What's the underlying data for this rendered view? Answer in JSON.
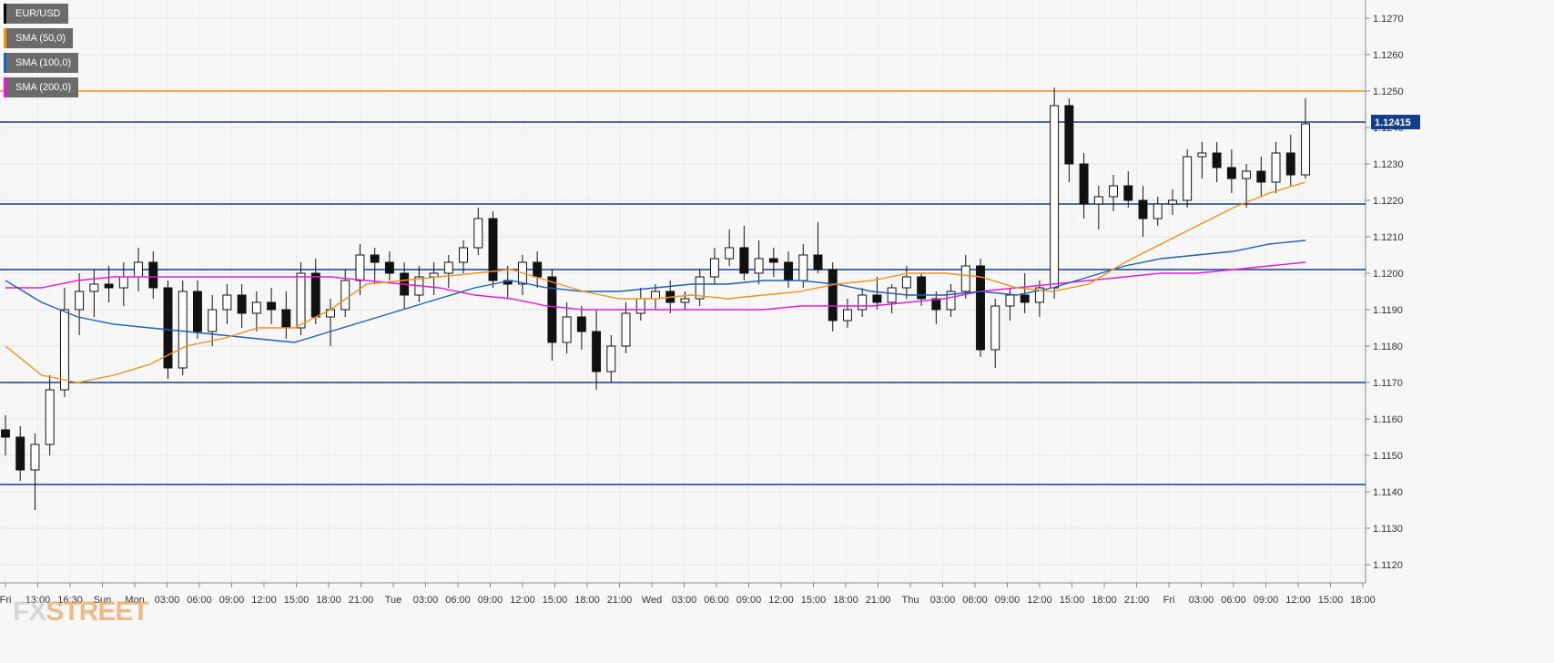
{
  "chart_data": {
    "type": "candlestick",
    "symbol": "EUR/USD",
    "last_price_label": "1.12415",
    "last_price": 1.12415,
    "ylim": [
      1.1115,
      1.1275
    ],
    "y_ticks": [
      1.127,
      1.126,
      1.125,
      1.124,
      1.123,
      1.122,
      1.121,
      1.12,
      1.119,
      1.118,
      1.117,
      1.116,
      1.115,
      1.114,
      1.113,
      1.112
    ],
    "y_tick_labels": [
      "1.1270",
      "1.1260",
      "1.1250",
      "1.1240",
      "1.1230",
      "1.1220",
      "1.1210",
      "1.1200",
      "1.1190",
      "1.1180",
      "1.1170",
      "1.1160",
      "1.1150",
      "1.1140",
      "1.1130",
      "1.1120"
    ],
    "x_tick_labels": [
      "Fri",
      "13:00",
      "16:30",
      "Sun",
      "Mon",
      "03:00",
      "06:00",
      "09:00",
      "12:00",
      "15:00",
      "18:00",
      "21:00",
      "Tue",
      "03:00",
      "06:00",
      "09:00",
      "12:00",
      "15:00",
      "18:00",
      "21:00",
      "Wed",
      "03:00",
      "06:00",
      "09:00",
      "12:00",
      "15:00",
      "18:00",
      "21:00",
      "Thu",
      "03:00",
      "06:00",
      "09:00",
      "12:00",
      "15:00",
      "18:00",
      "21:00",
      "Fri",
      "03:00",
      "06:00",
      "09:00",
      "12:00",
      "15:00",
      "18:00"
    ],
    "legend": [
      {
        "label": "EUR/USD",
        "color": "#000000"
      },
      {
        "label": "SMA (50,0)",
        "color": "#f0921e"
      },
      {
        "label": "SMA (100,0)",
        "color": "#1f5fb4"
      },
      {
        "label": "SMA (200,0)",
        "color": "#e619d6"
      }
    ],
    "horizontal_levels": [
      {
        "value": 1.125,
        "color": "#f0921e"
      },
      {
        "value": 1.12415,
        "color": "#123f8c"
      },
      {
        "value": 1.1219,
        "color": "#123f8c"
      },
      {
        "value": 1.1201,
        "color": "#123f8c"
      },
      {
        "value": 1.117,
        "color": "#123f8c"
      },
      {
        "value": 1.1142,
        "color": "#123f8c"
      }
    ],
    "sma50": [
      1.118,
      1.1172,
      1.117,
      1.1172,
      1.1175,
      1.118,
      1.1182,
      1.1185,
      1.1185,
      1.119,
      1.1197,
      1.1198,
      1.1199,
      1.12,
      1.1201,
      1.1198,
      1.1195,
      1.1193,
      1.1193,
      1.1194,
      1.1193,
      1.1194,
      1.1195,
      1.1197,
      1.1198,
      1.12,
      1.12,
      1.1199,
      1.1196,
      1.1195,
      1.1197,
      1.1203,
      1.1208,
      1.1213,
      1.1218,
      1.1222,
      1.1225
    ],
    "sma100": [
      1.1198,
      1.1192,
      1.1188,
      1.1186,
      1.1185,
      1.1184,
      1.1183,
      1.1182,
      1.1181,
      1.1184,
      1.1187,
      1.119,
      1.1193,
      1.1196,
      1.1198,
      1.1196,
      1.1195,
      1.1195,
      1.1196,
      1.1197,
      1.1197,
      1.1198,
      1.1198,
      1.1197,
      1.1195,
      1.1194,
      1.1194,
      1.1195,
      1.1194,
      1.1196,
      1.1199,
      1.1202,
      1.1204,
      1.1205,
      1.1206,
      1.1208,
      1.1209
    ],
    "sma200": [
      1.1196,
      1.1196,
      1.1198,
      1.1199,
      1.1199,
      1.1199,
      1.1199,
      1.1199,
      1.1199,
      1.1199,
      1.1198,
      1.1197,
      1.1196,
      1.1194,
      1.1193,
      1.1191,
      1.119,
      1.119,
      1.119,
      1.119,
      1.119,
      1.119,
      1.1191,
      1.1191,
      1.1191,
      1.1192,
      1.1193,
      1.1195,
      1.1196,
      1.1197,
      1.1198,
      1.1199,
      1.12,
      1.12,
      1.1201,
      1.1202,
      1.1203
    ],
    "candles_ohlc": [
      [
        1.1157,
        1.1161,
        1.115,
        1.1155
      ],
      [
        1.1155,
        1.1158,
        1.1143,
        1.1146
      ],
      [
        1.1146,
        1.1156,
        1.1135,
        1.1153
      ],
      [
        1.1153,
        1.1172,
        1.115,
        1.1168
      ],
      [
        1.1168,
        1.1196,
        1.1166,
        1.119
      ],
      [
        1.119,
        1.12,
        1.1183,
        1.1195
      ],
      [
        1.1195,
        1.1201,
        1.1188,
        1.1197
      ],
      [
        1.1197,
        1.1202,
        1.1192,
        1.1196
      ],
      [
        1.1196,
        1.1203,
        1.1191,
        1.1199
      ],
      [
        1.1199,
        1.1207,
        1.1195,
        1.1203
      ],
      [
        1.1203,
        1.1206,
        1.1193,
        1.1196
      ],
      [
        1.1196,
        1.1198,
        1.1171,
        1.1174
      ],
      [
        1.1174,
        1.1198,
        1.1172,
        1.1195
      ],
      [
        1.1195,
        1.1198,
        1.1182,
        1.1184
      ],
      [
        1.1184,
        1.1194,
        1.118,
        1.119
      ],
      [
        1.119,
        1.1197,
        1.1186,
        1.1194
      ],
      [
        1.1194,
        1.1197,
        1.1185,
        1.1189
      ],
      [
        1.1189,
        1.1195,
        1.1184,
        1.1192
      ],
      [
        1.1192,
        1.1196,
        1.1186,
        1.119
      ],
      [
        1.119,
        1.1195,
        1.1182,
        1.1185
      ],
      [
        1.1185,
        1.1203,
        1.1183,
        1.12
      ],
      [
        1.12,
        1.1204,
        1.1186,
        1.1188
      ],
      [
        1.1188,
        1.1193,
        1.118,
        1.119
      ],
      [
        1.119,
        1.1201,
        1.1188,
        1.1198
      ],
      [
        1.1198,
        1.1208,
        1.1194,
        1.1205
      ],
      [
        1.1205,
        1.1207,
        1.1197,
        1.1203
      ],
      [
        1.1203,
        1.1206,
        1.1198,
        1.12
      ],
      [
        1.12,
        1.1203,
        1.119,
        1.1194
      ],
      [
        1.1194,
        1.1202,
        1.1192,
        1.1199
      ],
      [
        1.1199,
        1.1203,
        1.1194,
        1.12
      ],
      [
        1.12,
        1.1205,
        1.1196,
        1.1203
      ],
      [
        1.1203,
        1.1209,
        1.12,
        1.1207
      ],
      [
        1.1207,
        1.1218,
        1.1205,
        1.1215
      ],
      [
        1.1215,
        1.1217,
        1.1196,
        1.1198
      ],
      [
        1.1198,
        1.1202,
        1.1193,
        1.1197
      ],
      [
        1.1197,
        1.1205,
        1.1194,
        1.1203
      ],
      [
        1.1203,
        1.1206,
        1.1196,
        1.1199
      ],
      [
        1.1199,
        1.1201,
        1.1176,
        1.1181
      ],
      [
        1.1181,
        1.1192,
        1.1178,
        1.1188
      ],
      [
        1.1188,
        1.1191,
        1.1179,
        1.1184
      ],
      [
        1.1184,
        1.119,
        1.1168,
        1.1173
      ],
      [
        1.1173,
        1.1183,
        1.117,
        1.118
      ],
      [
        1.118,
        1.1192,
        1.1178,
        1.1189
      ],
      [
        1.1189,
        1.1196,
        1.1187,
        1.1193
      ],
      [
        1.1193,
        1.1197,
        1.119,
        1.1195
      ],
      [
        1.1195,
        1.1198,
        1.1189,
        1.1192
      ],
      [
        1.1192,
        1.1195,
        1.119,
        1.1193
      ],
      [
        1.1193,
        1.1201,
        1.1191,
        1.1199
      ],
      [
        1.1199,
        1.1207,
        1.1197,
        1.1204
      ],
      [
        1.1204,
        1.1212,
        1.1202,
        1.1207
      ],
      [
        1.1207,
        1.1213,
        1.1198,
        1.12
      ],
      [
        1.12,
        1.1209,
        1.1197,
        1.1204
      ],
      [
        1.1204,
        1.1207,
        1.1199,
        1.1203
      ],
      [
        1.1203,
        1.1206,
        1.1196,
        1.1198
      ],
      [
        1.1198,
        1.1208,
        1.1196,
        1.1205
      ],
      [
        1.1205,
        1.1214,
        1.12,
        1.1201
      ],
      [
        1.1201,
        1.1203,
        1.1184,
        1.1187
      ],
      [
        1.1187,
        1.1193,
        1.1185,
        1.119
      ],
      [
        1.119,
        1.1196,
        1.1188,
        1.1194
      ],
      [
        1.1194,
        1.1199,
        1.119,
        1.1192
      ],
      [
        1.1192,
        1.1197,
        1.1189,
        1.1196
      ],
      [
        1.1196,
        1.1202,
        1.1193,
        1.1199
      ],
      [
        1.1199,
        1.12,
        1.1191,
        1.1193
      ],
      [
        1.1193,
        1.1195,
        1.1186,
        1.119
      ],
      [
        1.119,
        1.1197,
        1.1188,
        1.1195
      ],
      [
        1.1195,
        1.1205,
        1.1193,
        1.1202
      ],
      [
        1.1202,
        1.1204,
        1.1177,
        1.1179
      ],
      [
        1.1179,
        1.1193,
        1.1174,
        1.1191
      ],
      [
        1.1191,
        1.1196,
        1.1187,
        1.1194
      ],
      [
        1.1194,
        1.12,
        1.1189,
        1.1192
      ],
      [
        1.1192,
        1.1198,
        1.1188,
        1.1196
      ],
      [
        1.1196,
        1.1251,
        1.1193,
        1.1246
      ],
      [
        1.1246,
        1.1248,
        1.1225,
        1.123
      ],
      [
        1.123,
        1.1233,
        1.1215,
        1.1219
      ],
      [
        1.1219,
        1.1224,
        1.1212,
        1.1221
      ],
      [
        1.1221,
        1.1227,
        1.1217,
        1.1224
      ],
      [
        1.1224,
        1.1228,
        1.1218,
        1.122
      ],
      [
        1.122,
        1.1224,
        1.121,
        1.1215
      ],
      [
        1.1215,
        1.1221,
        1.1213,
        1.1219
      ],
      [
        1.1219,
        1.1223,
        1.1216,
        1.122
      ],
      [
        1.122,
        1.1234,
        1.1218,
        1.1232
      ],
      [
        1.1232,
        1.1236,
        1.1226,
        1.1233
      ],
      [
        1.1233,
        1.1236,
        1.1225,
        1.1229
      ],
      [
        1.1229,
        1.1234,
        1.1222,
        1.1226
      ],
      [
        1.1226,
        1.123,
        1.1218,
        1.1228
      ],
      [
        1.1228,
        1.1232,
        1.1221,
        1.1225
      ],
      [
        1.1225,
        1.1236,
        1.1222,
        1.1233
      ],
      [
        1.1233,
        1.1238,
        1.1224,
        1.1227
      ],
      [
        1.1227,
        1.1248,
        1.1226,
        1.1241
      ]
    ]
  },
  "watermark": {
    "fx": "FX",
    "street": "STREET"
  }
}
